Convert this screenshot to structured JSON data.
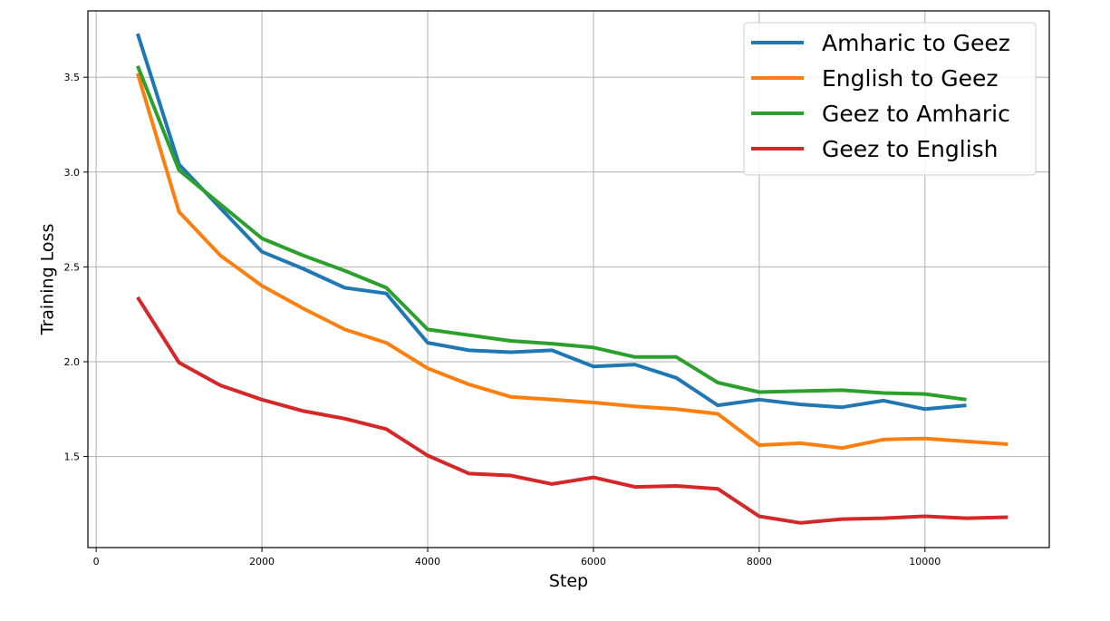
{
  "chart_data": {
    "type": "line",
    "title": "",
    "xlabel": "Step",
    "ylabel": "Training Loss",
    "xlim": [
      -100,
      11500
    ],
    "ylim": [
      1.02,
      3.85
    ],
    "xticks": [
      0,
      2000,
      4000,
      6000,
      8000,
      10000
    ],
    "yticks": [
      1.5,
      2.0,
      2.5,
      3.0,
      3.5
    ],
    "xtick_labels": [
      "0",
      "2000",
      "4000",
      "6000",
      "8000",
      "10000"
    ],
    "ytick_labels": [
      "1.5",
      "2.0",
      "2.5",
      "3.0",
      "3.5"
    ],
    "grid": true,
    "legend_position": "top-right",
    "series": [
      {
        "name": "Amharic to Geez",
        "color": "#1f77b4",
        "x": [
          500,
          1000,
          1500,
          2000,
          2500,
          3000,
          3500,
          4000,
          4500,
          5000,
          5500,
          6000,
          6500,
          7000,
          7500,
          8000,
          8500,
          9000,
          9500,
          10000,
          10500
        ],
        "values": [
          3.73,
          3.04,
          2.81,
          2.58,
          2.49,
          2.39,
          2.36,
          2.1,
          2.06,
          2.05,
          2.06,
          1.975,
          1.985,
          1.915,
          1.77,
          1.8,
          1.775,
          1.76,
          1.795,
          1.75,
          1.77
        ]
      },
      {
        "name": "English to Geez",
        "color": "#ff7f0e",
        "x": [
          500,
          1000,
          1500,
          2000,
          2500,
          3000,
          3500,
          4000,
          4500,
          5000,
          5500,
          6000,
          6500,
          7000,
          7500,
          8000,
          8500,
          9000,
          9500,
          10000,
          10500,
          11000
        ],
        "values": [
          3.52,
          2.79,
          2.56,
          2.4,
          2.28,
          2.17,
          2.1,
          1.965,
          1.88,
          1.815,
          1.8,
          1.785,
          1.765,
          1.75,
          1.725,
          1.56,
          1.57,
          1.545,
          1.59,
          1.595,
          1.58,
          1.565
        ]
      },
      {
        "name": "Geez to Amharic",
        "color": "#2ca02c",
        "x": [
          500,
          1000,
          1500,
          2000,
          2500,
          3000,
          3500,
          4000,
          4500,
          5000,
          5500,
          6000,
          6500,
          7000,
          7500,
          8000,
          8500,
          9000,
          9500,
          10000,
          10500
        ],
        "values": [
          3.56,
          3.01,
          2.83,
          2.65,
          2.56,
          2.48,
          2.39,
          2.17,
          2.14,
          2.11,
          2.095,
          2.075,
          2.025,
          2.025,
          1.89,
          1.84,
          1.845,
          1.85,
          1.835,
          1.83,
          1.8
        ]
      },
      {
        "name": "Geez to English",
        "color": "#d62728",
        "x": [
          500,
          1000,
          1500,
          2000,
          2500,
          3000,
          3500,
          4000,
          4500,
          5000,
          5500,
          6000,
          6500,
          7000,
          7500,
          8000,
          8500,
          9000,
          9500,
          10000,
          10500,
          11000
        ],
        "values": [
          2.34,
          1.995,
          1.875,
          1.8,
          1.74,
          1.7,
          1.645,
          1.505,
          1.41,
          1.4,
          1.355,
          1.39,
          1.34,
          1.345,
          1.33,
          1.185,
          1.15,
          1.17,
          1.175,
          1.185,
          1.175,
          1.18
        ]
      }
    ]
  }
}
